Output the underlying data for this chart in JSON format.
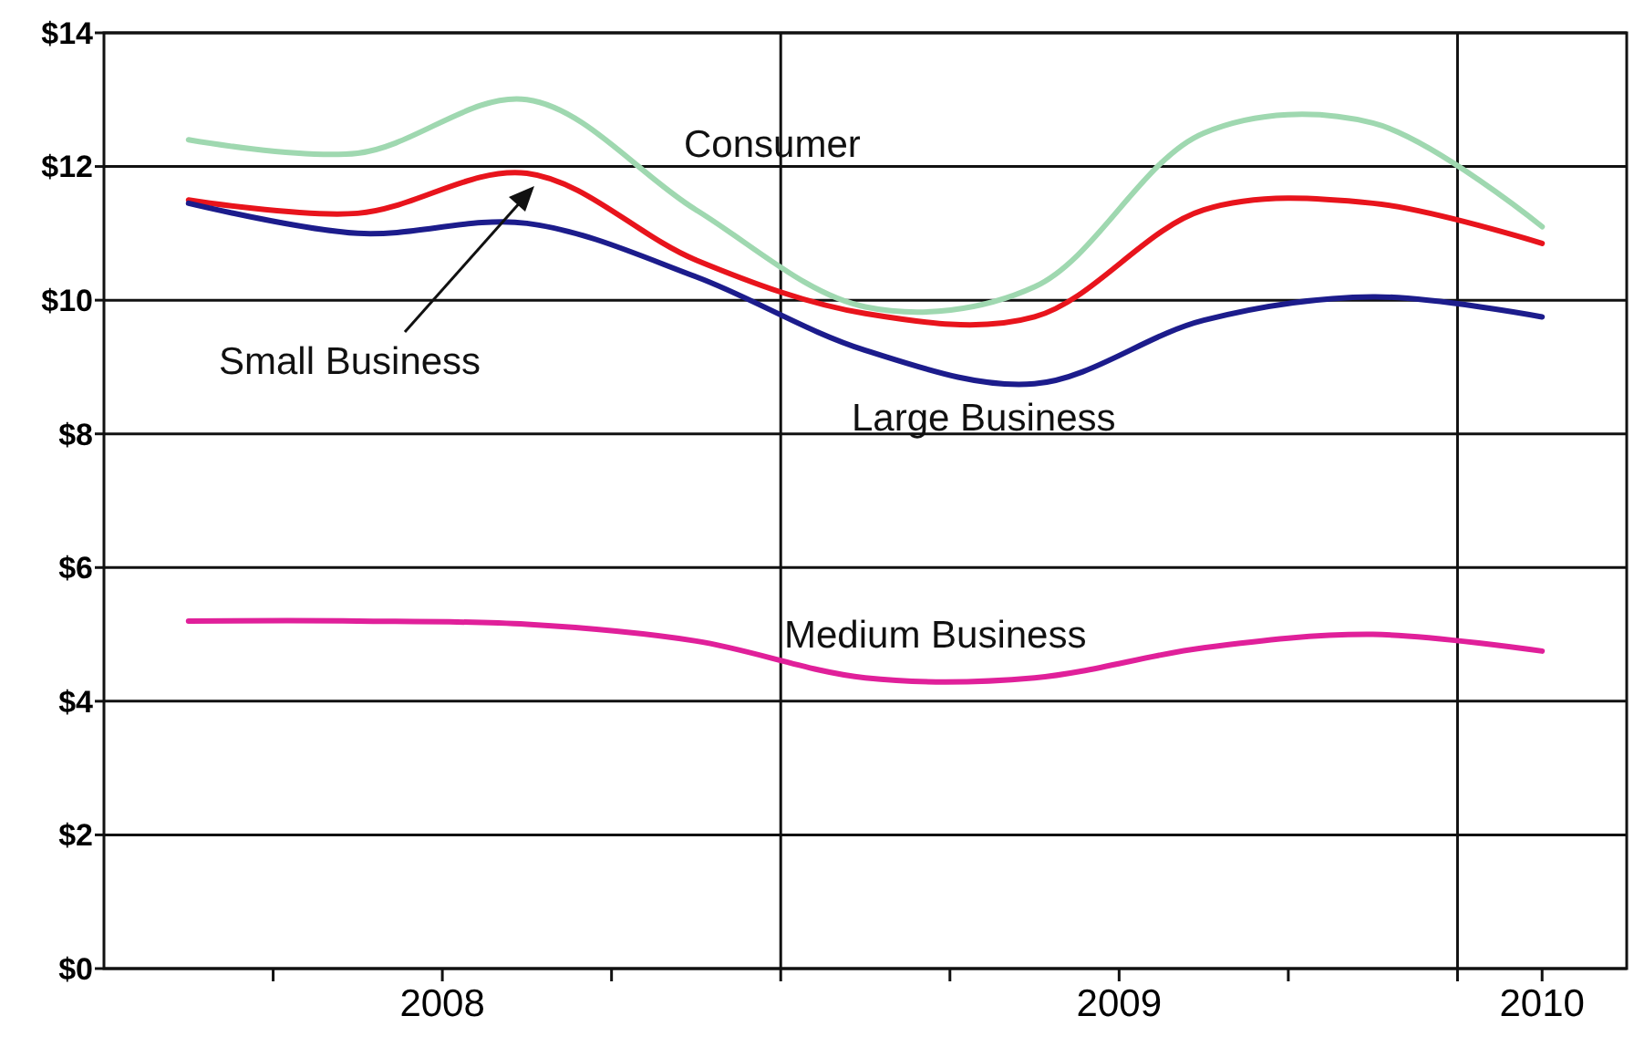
{
  "chart_data": {
    "type": "line",
    "x": [
      2008.125,
      2008.375,
      2008.625,
      2008.875,
      2009.125,
      2009.375,
      2009.625,
      2009.875,
      2010.125
    ],
    "series": [
      {
        "name": "Consumer",
        "color": "#9fd8b0",
        "values": [
          12.4,
          12.2,
          13.0,
          11.35,
          9.9,
          10.2,
          12.5,
          12.65,
          11.1
        ]
      },
      {
        "name": "Small Business",
        "color": "#e8141c",
        "values": [
          11.5,
          11.3,
          11.9,
          10.6,
          9.8,
          9.75,
          11.35,
          11.45,
          10.85
        ]
      },
      {
        "name": "Large Business",
        "color": "#1c1c8c",
        "values": [
          11.45,
          11.0,
          11.15,
          10.35,
          9.25,
          8.75,
          9.7,
          10.05,
          9.75
        ]
      },
      {
        "name": "Medium Business",
        "color": "#e0209a",
        "values": [
          5.2,
          5.2,
          5.15,
          4.9,
          4.35,
          4.35,
          4.8,
          5.0,
          4.75
        ]
      }
    ],
    "xlim": [
      2008,
      2010.25
    ],
    "xticks": [
      {
        "value": 2008.25,
        "label": null
      },
      {
        "value": 2008.5,
        "label": "2008"
      },
      {
        "value": 2008.75,
        "label": null
      },
      {
        "value": 2009,
        "label": null
      },
      {
        "value": 2009.25,
        "label": null
      },
      {
        "value": 2009.5,
        "label": "2009"
      },
      {
        "value": 2009.75,
        "label": null
      },
      {
        "value": 2010,
        "label": null
      },
      {
        "value": 2010.125,
        "label": "2010"
      }
    ],
    "ylim": [
      0,
      14
    ],
    "yticks": [
      {
        "value": 0,
        "label": "$0"
      },
      {
        "value": 2,
        "label": "$2"
      },
      {
        "value": 4,
        "label": "$4"
      },
      {
        "value": 6,
        "label": "$6"
      },
      {
        "value": 8,
        "label": "$8"
      },
      {
        "value": 10,
        "label": "$10"
      },
      {
        "value": 12,
        "label": "$12"
      },
      {
        "value": 14,
        "label": "$14"
      }
    ],
    "grid": "y",
    "ref_lines": [
      {
        "axis": "x",
        "value": 2009,
        "label": null
      },
      {
        "axis": "x",
        "value": 2010,
        "label": null
      }
    ],
    "marker": "none",
    "line_style": "solid"
  }
}
